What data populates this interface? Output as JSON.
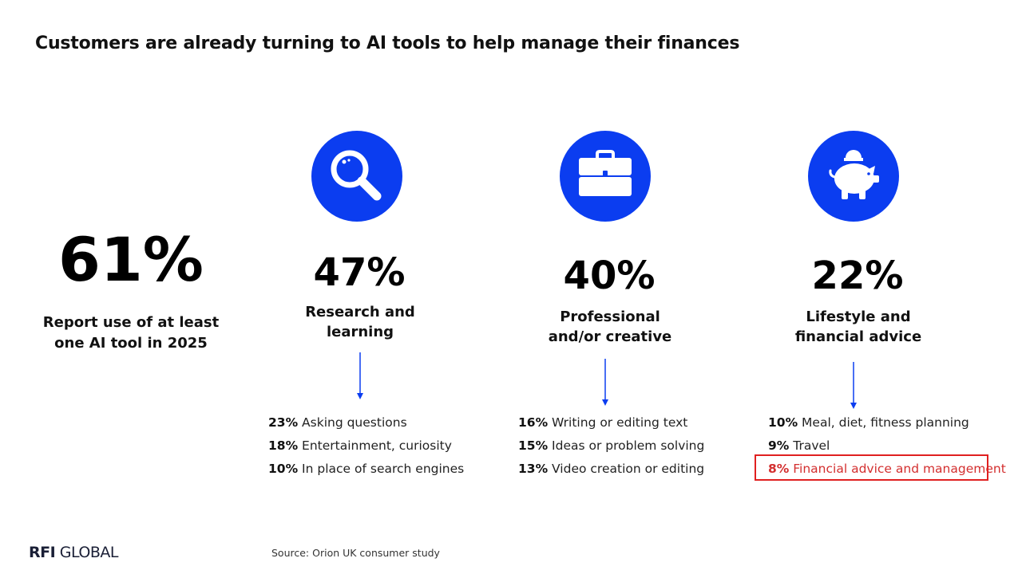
{
  "title": "Customers are already turning to AI tools to help manage their finances",
  "hero": {
    "percent": "61%",
    "line1": "Report use of at least",
    "line2": "one AI tool in 2025"
  },
  "categories": [
    {
      "icon": "magnifier-icon",
      "percent": "47%",
      "label_line1": "Research and",
      "label_line2": "learning",
      "items": [
        {
          "pct": "23%",
          "text": "Asking questions"
        },
        {
          "pct": "18%",
          "text": "Entertainment, curiosity"
        },
        {
          "pct": "10%",
          "text": "In place of search engines"
        }
      ]
    },
    {
      "icon": "briefcase-icon",
      "percent": "40%",
      "label_line1": "Professional",
      "label_line2": "and/or creative",
      "items": [
        {
          "pct": "16%",
          "text": "Writing or editing text"
        },
        {
          "pct": "15%",
          "text": "Ideas or problem solving"
        },
        {
          "pct": "13%",
          "text": "Video creation or editing"
        }
      ]
    },
    {
      "icon": "piggy-bank-icon",
      "percent": "22%",
      "label_line1": "Lifestyle and",
      "label_line2": "financial advice",
      "items": [
        {
          "pct": "10%",
          "text": "Meal, diet, fitness planning"
        },
        {
          "pct": "9%",
          "text": "Travel"
        },
        {
          "pct": "8%",
          "text": "Financial advice and management",
          "highlighted": true
        }
      ]
    }
  ],
  "colors": {
    "accent_blue": "#0b3df0",
    "highlight_red": "#e02020"
  },
  "logo": {
    "bold": "RFI",
    "regular": "GLOBAL"
  },
  "source": "Source: Orion UK consumer study"
}
